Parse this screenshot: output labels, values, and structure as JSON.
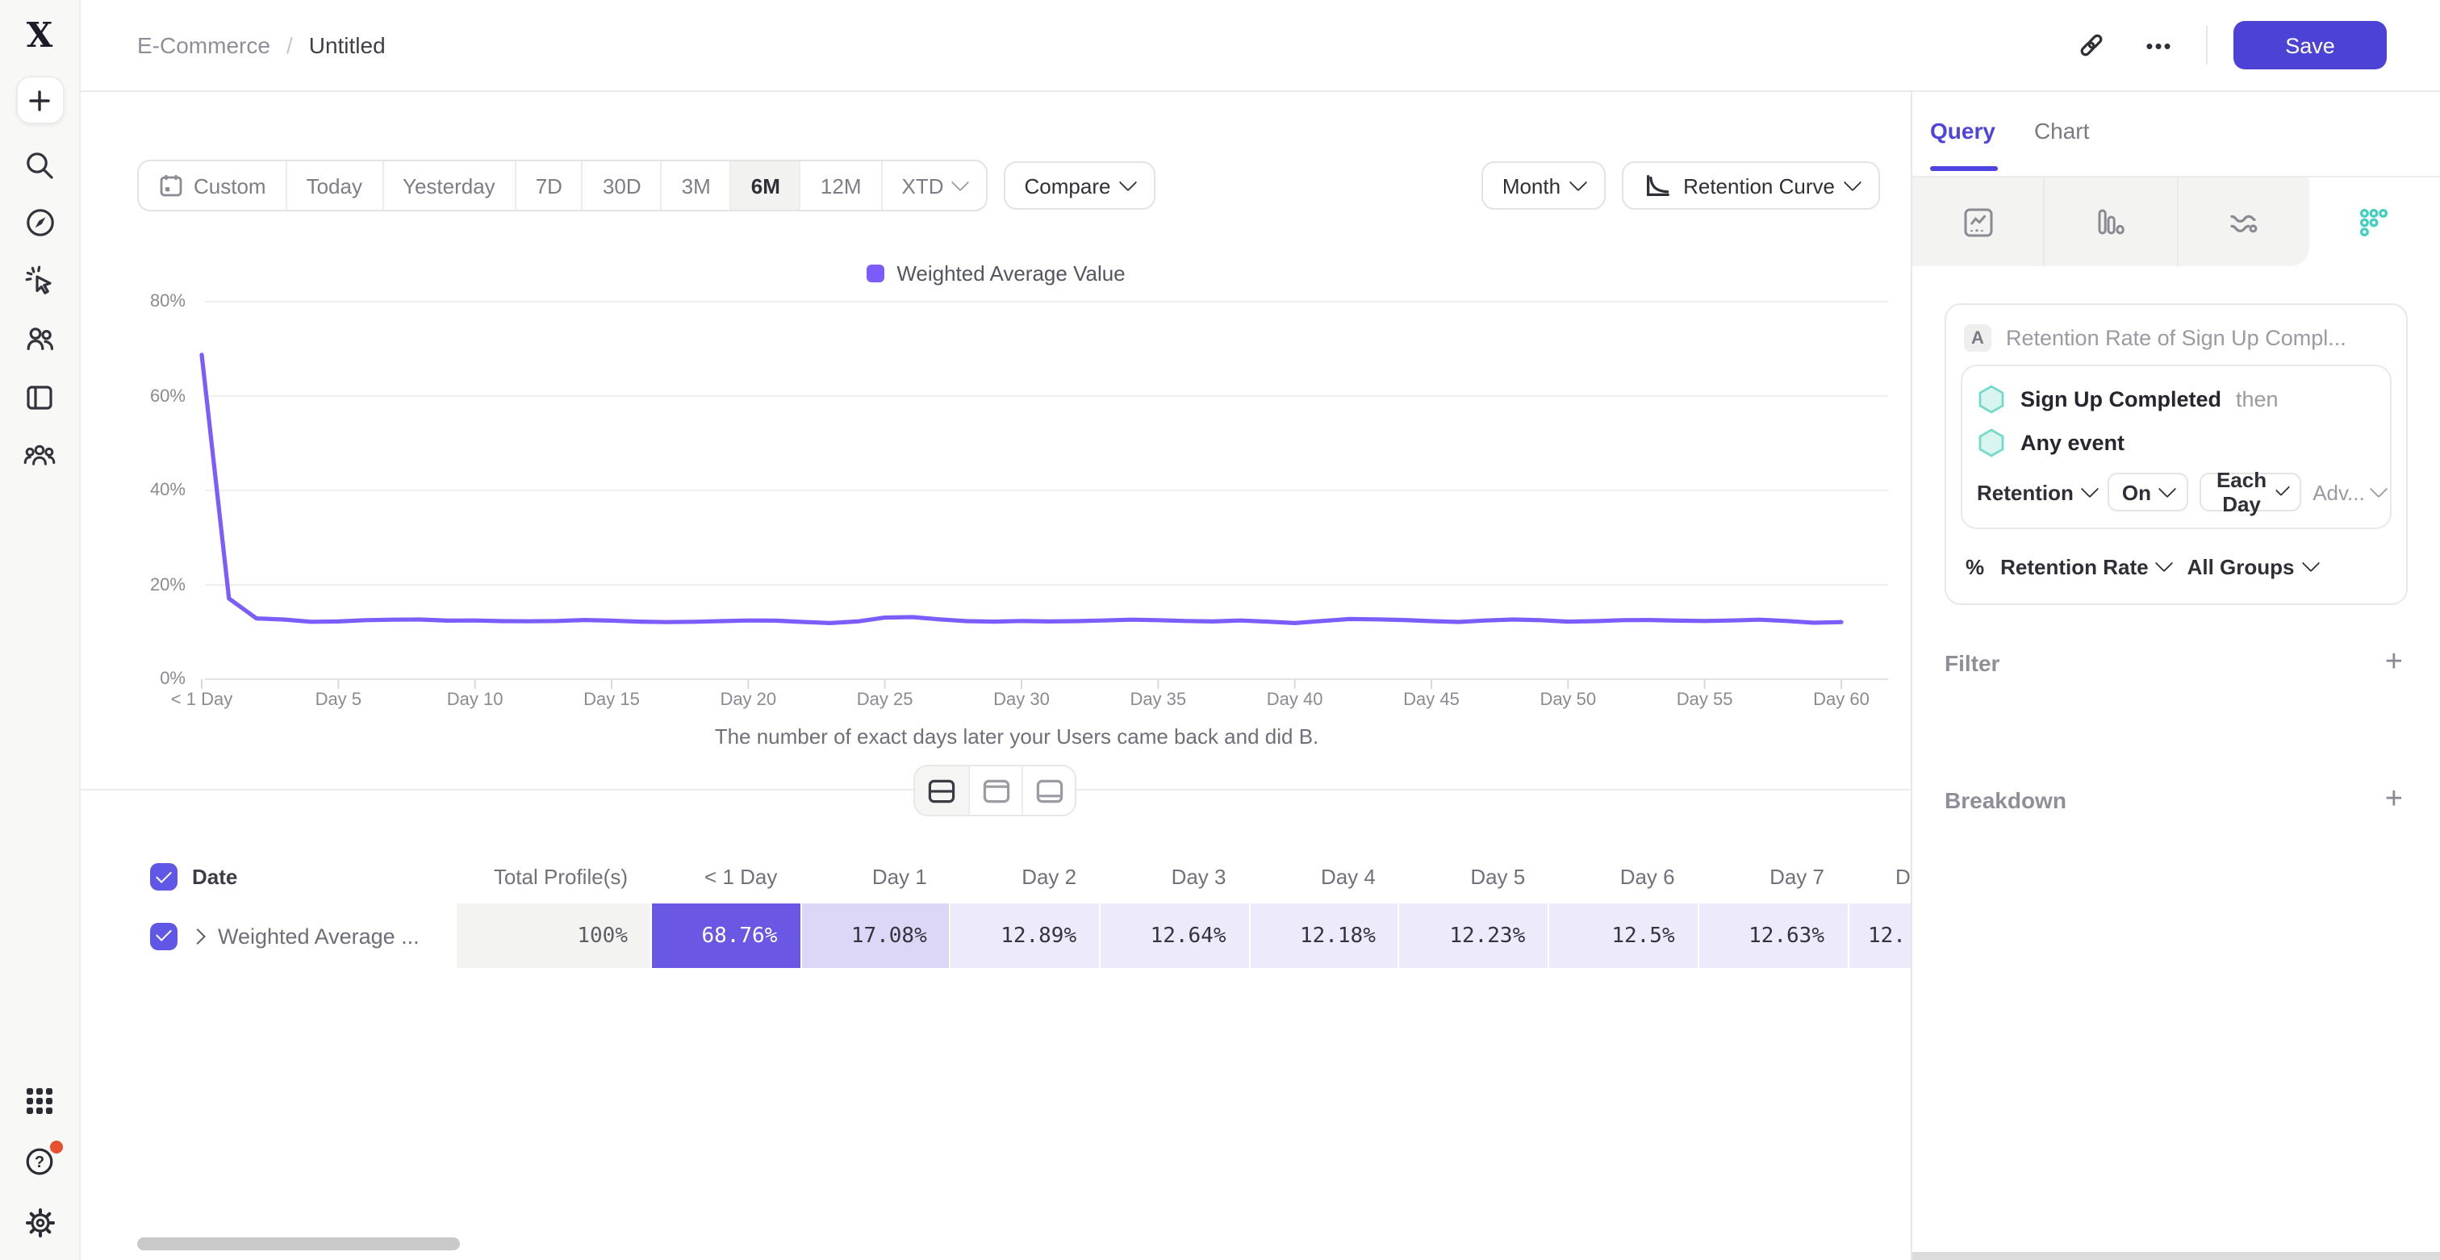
{
  "topbar": {
    "breadcrumb": {
      "project": "E-Commerce",
      "separator": "/",
      "report": "Untitled"
    },
    "more_label": "•••",
    "save_label": "Save"
  },
  "toolbar": {
    "ranges": [
      {
        "label": "Custom",
        "icon": "calendar"
      },
      {
        "label": "Today"
      },
      {
        "label": "Yesterday"
      },
      {
        "label": "7D"
      },
      {
        "label": "30D"
      },
      {
        "label": "3M"
      },
      {
        "label": "6M",
        "active": true
      },
      {
        "label": "12M"
      },
      {
        "label": "XTD",
        "chevron": true
      }
    ],
    "compare_label": "Compare",
    "granularity_label": "Month",
    "chart_type_label": "Retention Curve"
  },
  "chart_data": {
    "type": "line",
    "series_name": "Weighted Average Value",
    "line_color": "#7c5cfa",
    "ylim": [
      0,
      80
    ],
    "y_ticks": [
      "0%",
      "20%",
      "40%",
      "60%",
      "80%"
    ],
    "y_tick_values": [
      0,
      20,
      40,
      60,
      80
    ],
    "x_tick_labels": [
      "< 1 Day",
      "Day 5",
      "Day 10",
      "Day 15",
      "Day 20",
      "Day 25",
      "Day 30",
      "Day 35",
      "Day 40",
      "Day 45",
      "Day 50",
      "Day 55",
      "Day 60"
    ],
    "x_tick_days": [
      0,
      5,
      10,
      15,
      20,
      25,
      30,
      35,
      40,
      45,
      50,
      55,
      60
    ],
    "x_caption": "The number of exact days later your Users came back and did B.",
    "values": [
      68.76,
      17.08,
      12.89,
      12.64,
      12.18,
      12.23,
      12.5,
      12.63,
      12.66,
      12.4,
      12.45,
      12.3,
      12.28,
      12.35,
      12.55,
      12.4,
      12.2,
      12.1,
      12.18,
      12.32,
      12.45,
      12.4,
      12.15,
      11.9,
      12.25,
      13.05,
      13.15,
      12.7,
      12.3,
      12.2,
      12.35,
      12.25,
      12.3,
      12.45,
      12.6,
      12.5,
      12.35,
      12.25,
      12.45,
      12.2,
      11.9,
      12.35,
      12.75,
      12.7,
      12.55,
      12.3,
      12.15,
      12.45,
      12.65,
      12.5,
      12.2,
      12.3,
      12.5,
      12.55,
      12.4,
      12.35,
      12.45,
      12.6,
      12.35,
      11.95,
      12.1
    ],
    "grid": true,
    "legend_position": "top-center"
  },
  "view_toggle": {
    "options": [
      "split-view",
      "chart-view",
      "table-view"
    ],
    "active": 0
  },
  "table": {
    "header": [
      "Date",
      "Total Profile(s)",
      "< 1 Day",
      "Day 1",
      "Day 2",
      "Day 3",
      "Day 4",
      "Day 5",
      "Day 6",
      "Day 7",
      "D"
    ],
    "row": {
      "label": "Weighted Average ...",
      "values": [
        "100%",
        "68.76%",
        "17.08%",
        "12.89%",
        "12.64%",
        "12.18%",
        "12.23%",
        "12.5%",
        "12.63%",
        "12."
      ]
    }
  },
  "panel": {
    "tabs": [
      {
        "label": "Query",
        "active": true
      },
      {
        "label": "Chart",
        "active": false
      }
    ],
    "icon_tabs": [
      "insights",
      "funnels",
      "flows",
      "retention"
    ],
    "selected_icon_tab": "retention",
    "card": {
      "badge": "A",
      "title": "Retention Rate of Sign Up Compl...",
      "events": [
        {
          "name": "Sign Up Completed",
          "suffix": "then"
        },
        {
          "name": "Any event",
          "suffix": ""
        }
      ],
      "controls": {
        "retention": "Retention",
        "on": "On",
        "frequency": "Each Day",
        "advanced": "Adv...",
        "percent": "%",
        "measure": "Retention Rate",
        "groups": "All Groups"
      }
    },
    "sections": [
      {
        "label": "Filter"
      },
      {
        "label": "Breakdown"
      }
    ]
  },
  "colors": {
    "accent": "#4d42d6",
    "line": "#7c5cfa",
    "teal": "#3ecfbf",
    "hot_cell": "#6a58e5",
    "warm_cell": "#dcd7f6",
    "cool_cell": "#edeafb"
  }
}
